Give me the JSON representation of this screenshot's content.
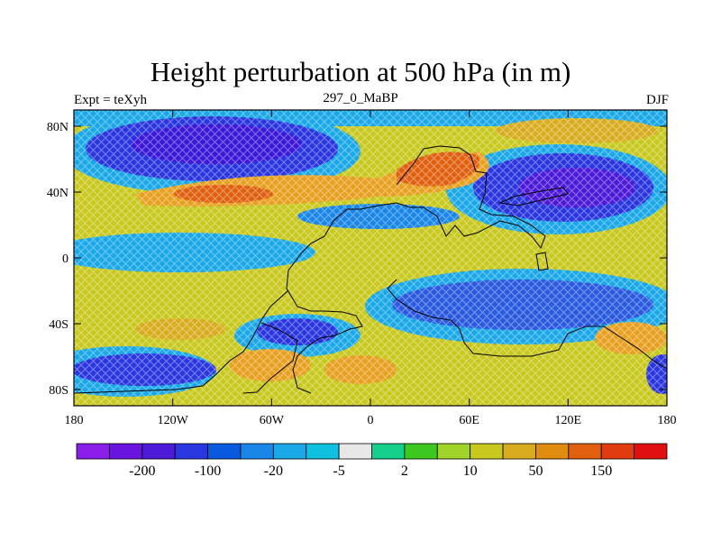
{
  "title": "Height perturbation at 500 hPa (in m)",
  "left_string": "Expt = teXyh",
  "center_string": "297_0_MaBP",
  "right_string": "DJF",
  "colors": {
    "bg_yellow": "#c8c81e",
    "green": "#9ccf28",
    "orange": "#e8a020",
    "red_orange": "#e06010",
    "blue": "#1e3ce0",
    "dark_blue": "#3c18d8",
    "cyan": "#1aa8e8"
  },
  "map": {
    "lat_ticks": [
      "80N",
      "40N",
      "0",
      "40S",
      "80S"
    ],
    "lon_ticks": [
      "180",
      "120W",
      "60W",
      "0",
      "60E",
      "120E",
      "180"
    ]
  },
  "colorbar": {
    "colors": [
      "#8a1ee8",
      "#6a14e0",
      "#4c1ad8",
      "#2a36e0",
      "#0a5ae0",
      "#1a86e8",
      "#1aa8e8",
      "#10c0e0",
      "#e8e8e8",
      "#14d08c",
      "#3cc81e",
      "#a0d428",
      "#c8c81e",
      "#d8ac1e",
      "#e08c10",
      "#e06010",
      "#e03c10",
      "#e01010"
    ],
    "labels": [
      {
        "after": 1,
        "text": "-200"
      },
      {
        "after": 3,
        "text": "-100"
      },
      {
        "after": 5,
        "text": "-20"
      },
      {
        "after": 7,
        "text": "-5"
      },
      {
        "after": 9,
        "text": "2"
      },
      {
        "after": 11,
        "text": "10"
      },
      {
        "after": 13,
        "text": "50"
      },
      {
        "after": 15,
        "text": "150"
      }
    ]
  }
}
